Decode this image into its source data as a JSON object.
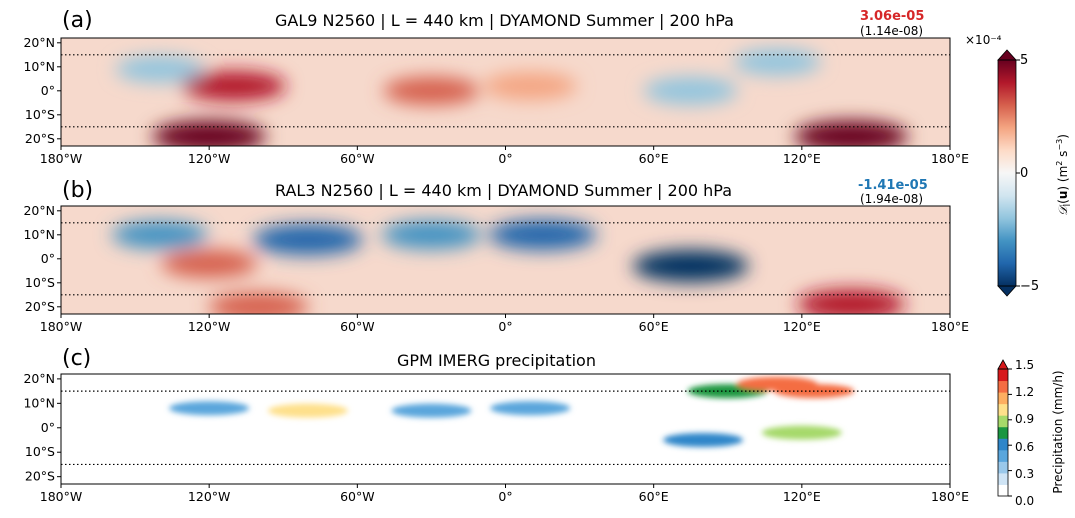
{
  "panels": [
    {
      "letter": "(a)",
      "title": "GAL9 N2560 | L = 440 km | DYAMOND Summer | 200 hPa",
      "value": "3.06e-05",
      "value_color": "#d62728",
      "sub": "(1.14e-08)"
    },
    {
      "letter": "(b)",
      "title": "RAL3 N2560 | L = 440 km | DYAMOND Summer | 200 hPa",
      "value": "-1.41e-05",
      "value_color": "#1f77b4",
      "sub": "(1.94e-08)"
    },
    {
      "letter": "(c)",
      "title": "GPM IMERG precipitation"
    }
  ],
  "lat_labels": [
    "20°N",
    "10°N",
    "0°",
    "10°S",
    "20°S"
  ],
  "lon_labels": [
    "180°W",
    "120°W",
    "60°W",
    "0°",
    "60°E",
    "120°E",
    "180°E"
  ],
  "colorbar_div": {
    "label": "D_l(u) (m² s⁻³)",
    "multiplier": "×10⁻⁴",
    "ticks": [
      "5",
      "0",
      "−5"
    ],
    "colormap": [
      "#67001f",
      "#b2182b",
      "#d6604d",
      "#f4a582",
      "#fddbc7",
      "#f7f7f7",
      "#d1e5f0",
      "#92c5de",
      "#4393c3",
      "#2166ac",
      "#053061"
    ]
  },
  "colorbar_precip": {
    "label": "Precipitation (mm/h)",
    "ticks": [
      "1.5",
      "1.2",
      "0.9",
      "0.6",
      "0.3",
      "0.0"
    ],
    "colors": [
      "#ffffff",
      "#cfe4f5",
      "#9ac8ea",
      "#5aa6dc",
      "#2f86c9",
      "#1a9641",
      "#a6d96a",
      "#fee08b",
      "#fdae61",
      "#f46d43",
      "#d7191c"
    ]
  },
  "chart_data": [
    {
      "type": "heatmap",
      "title": "GAL9 N2560 | L = 440 km | DYAMOND Summer | 200 hPa",
      "xlim": [
        -180,
        180
      ],
      "ylim": [
        -23,
        22
      ],
      "xticks": [
        -180,
        -120,
        -60,
        0,
        60,
        120,
        180
      ],
      "yticks": [
        20,
        10,
        0,
        -10,
        -20
      ],
      "reference_lines_lat": [
        15,
        -15
      ],
      "domain_mean": 3.06e-05,
      "std_error": 1.14e-08,
      "color_range": [
        -0.0005,
        0.0005
      ],
      "features": [
        {
          "lon": -120,
          "lat": -19,
          "sign": "positive",
          "strength": 0.95
        },
        {
          "lon": -110,
          "lat": 2,
          "sign": "positive",
          "strength": 0.7
        },
        {
          "lon": -30,
          "lat": 0,
          "sign": "positive",
          "strength": 0.5
        },
        {
          "lon": 10,
          "lat": 2,
          "sign": "positive",
          "strength": 0.45
        },
        {
          "lon": 140,
          "lat": -19,
          "sign": "positive",
          "strength": 0.95
        },
        {
          "lon": 75,
          "lat": 0,
          "sign": "negative",
          "strength": 0.45
        },
        {
          "lon": -140,
          "lat": 9,
          "sign": "negative",
          "strength": 0.3
        },
        {
          "lon": 110,
          "lat": 12,
          "sign": "negative",
          "strength": 0.3
        }
      ]
    },
    {
      "type": "heatmap",
      "title": "RAL3 N2560 | L = 440 km | DYAMOND Summer | 200 hPa",
      "xlim": [
        -180,
        180
      ],
      "ylim": [
        -23,
        22
      ],
      "xticks": [
        -180,
        -120,
        -60,
        0,
        60,
        120,
        180
      ],
      "yticks": [
        20,
        10,
        0,
        -10,
        -20
      ],
      "reference_lines_lat": [
        15,
        -15
      ],
      "domain_mean": -1.41e-05,
      "std_error": 1.94e-08,
      "color_range": [
        -0.0005,
        0.0005
      ],
      "features": [
        {
          "lon": -80,
          "lat": 8,
          "sign": "negative",
          "strength": 0.85
        },
        {
          "lon": -30,
          "lat": 10,
          "sign": "negative",
          "strength": 0.6
        },
        {
          "lon": 15,
          "lat": 10,
          "sign": "negative",
          "strength": 0.8
        },
        {
          "lon": 75,
          "lat": -3,
          "sign": "negative",
          "strength": 1.0
        },
        {
          "lon": -140,
          "lat": 10,
          "sign": "negative",
          "strength": 0.5
        },
        {
          "lon": -120,
          "lat": -2,
          "sign": "positive",
          "strength": 0.5
        },
        {
          "lon": -100,
          "lat": -20,
          "sign": "positive",
          "strength": 0.6
        },
        {
          "lon": 140,
          "lat": -19,
          "sign": "positive",
          "strength": 0.8
        }
      ]
    },
    {
      "type": "heatmap",
      "title": "GPM IMERG precipitation",
      "xlim": [
        -180,
        180
      ],
      "ylim": [
        -23,
        22
      ],
      "xticks": [
        -180,
        -120,
        -60,
        0,
        60,
        120,
        180
      ],
      "yticks": [
        20,
        10,
        0,
        -10,
        -20
      ],
      "reference_lines_lat": [
        15,
        -15
      ],
      "color_range": [
        0.0,
        1.5
      ],
      "features": [
        {
          "lon": -120,
          "lat": 8,
          "value": 0.4
        },
        {
          "lon": -80,
          "lat": 7,
          "value": 1.0
        },
        {
          "lon": -30,
          "lat": 7,
          "value": 0.5
        },
        {
          "lon": 10,
          "lat": 8,
          "value": 0.5
        },
        {
          "lon": 90,
          "lat": 15,
          "value": 0.7
        },
        {
          "lon": 110,
          "lat": 18,
          "value": 1.4
        },
        {
          "lon": 125,
          "lat": 15,
          "value": 1.4
        },
        {
          "lon": 80,
          "lat": -5,
          "value": 0.6
        },
        {
          "lon": 120,
          "lat": -2,
          "value": 0.9
        }
      ]
    }
  ]
}
